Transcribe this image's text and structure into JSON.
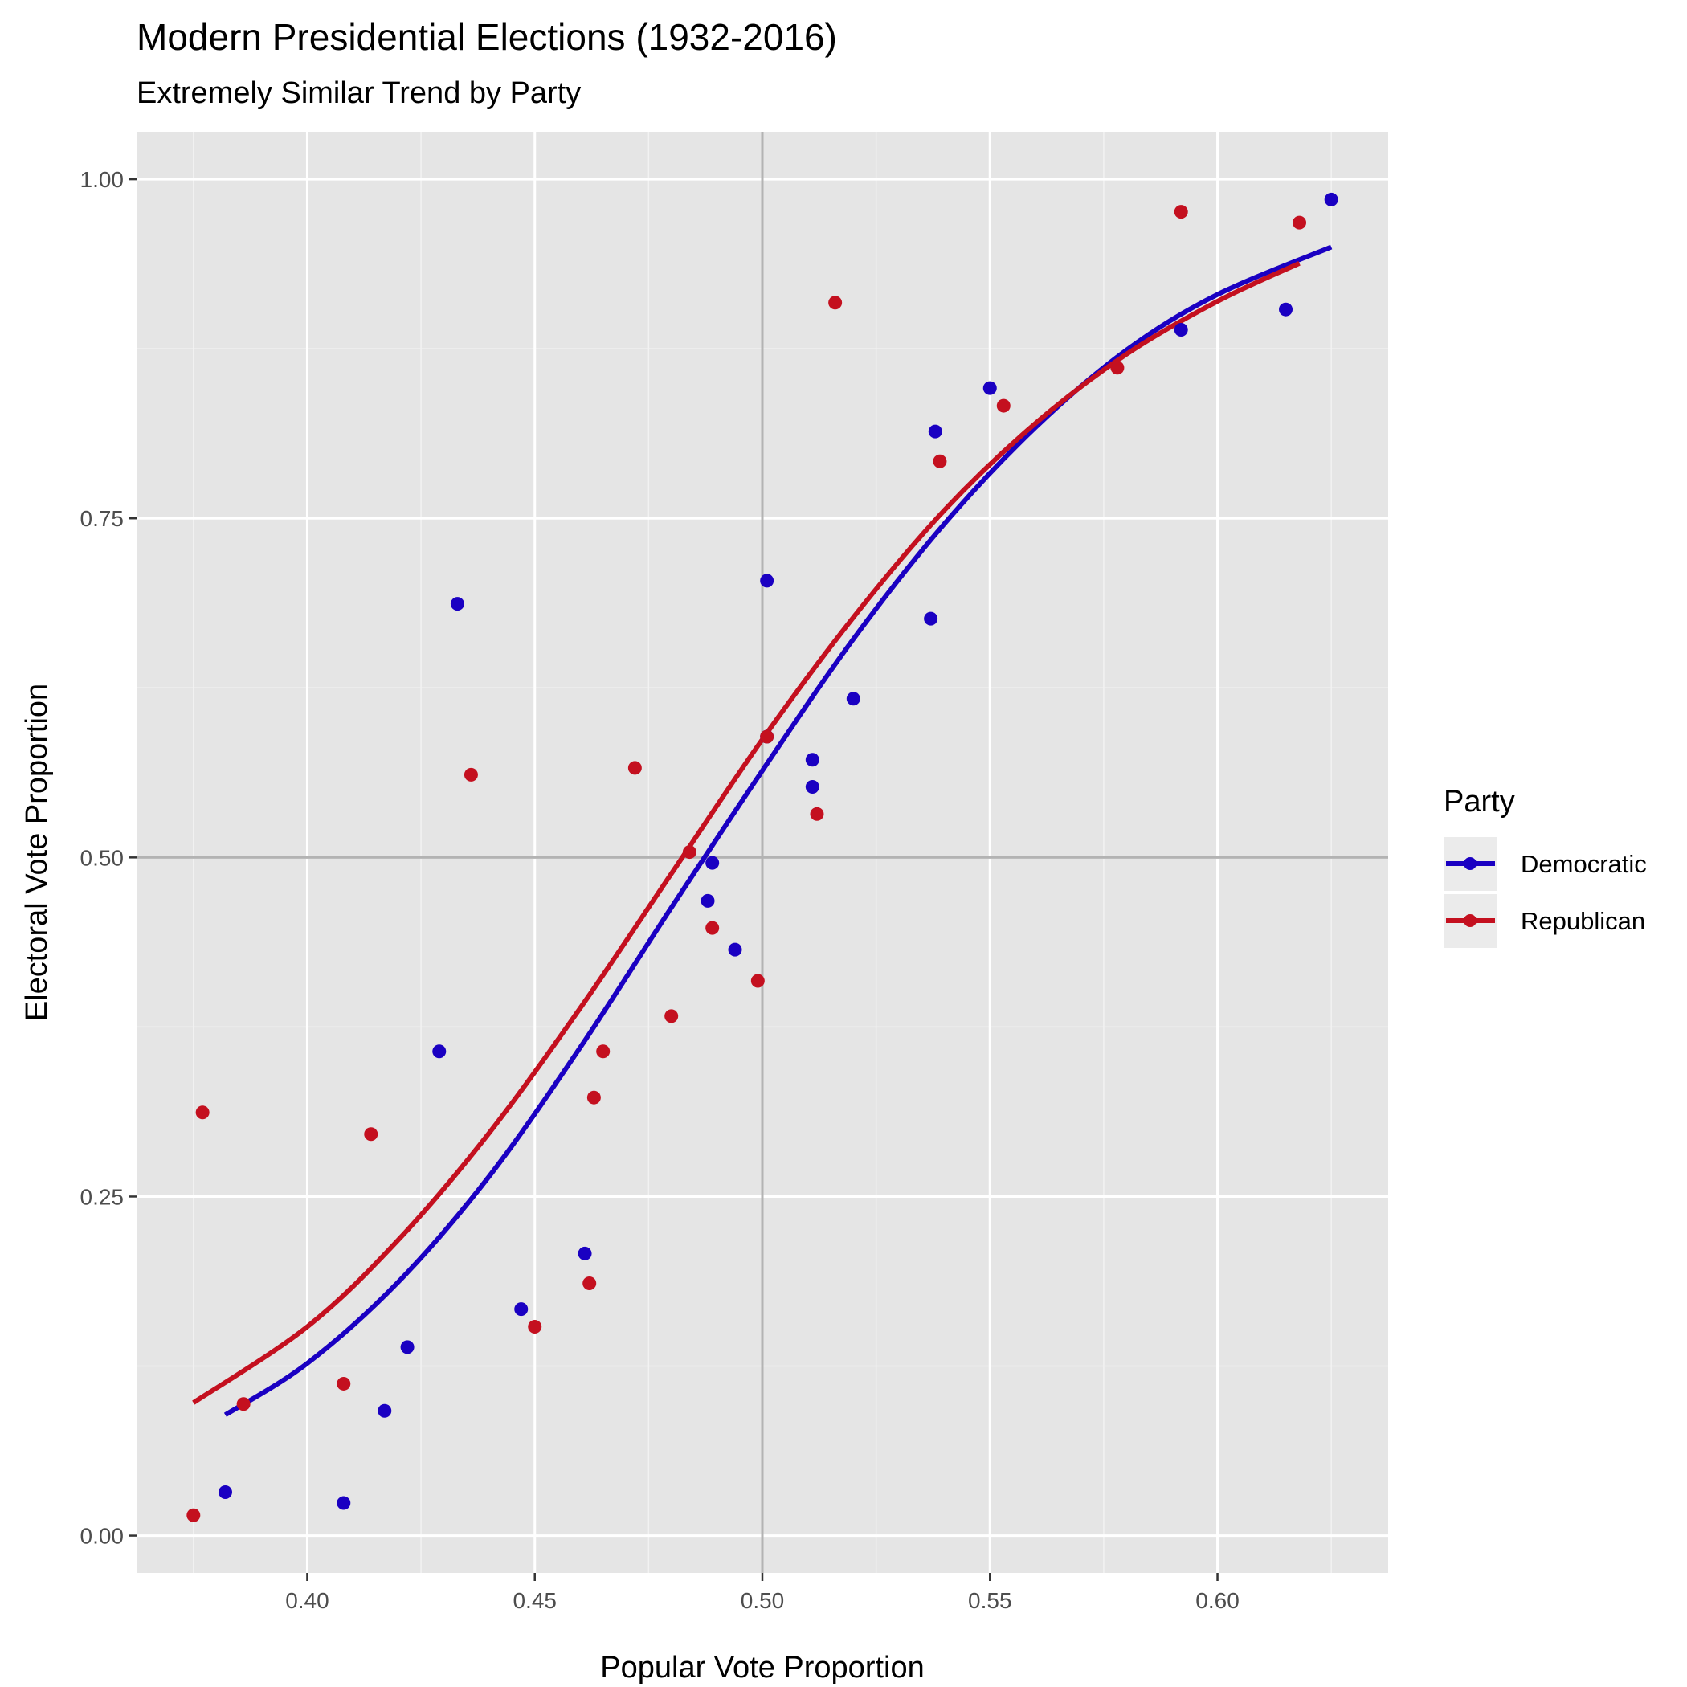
{
  "chart_data": {
    "type": "scatter",
    "title": "Modern Presidential Elections (1932-2016)",
    "subtitle": "Extremely Similar Trend by Party",
    "xlabel": "Popular Vote Proportion",
    "ylabel": "Electoral Vote Proportion",
    "xlim": [
      0.3625,
      0.6375
    ],
    "ylim": [
      -0.0275,
      1.035
    ],
    "x_ticks": [
      0.4,
      0.45,
      0.5,
      0.55,
      0.6
    ],
    "x_tick_labels": [
      "0.40",
      "0.45",
      "0.50",
      "0.55",
      "0.60"
    ],
    "y_ticks": [
      0.0,
      0.25,
      0.5,
      0.75,
      1.0
    ],
    "y_tick_labels": [
      "0.00",
      "0.25",
      "0.50",
      "0.75",
      "1.00"
    ],
    "reference_lines": {
      "x": 0.5,
      "y": 0.5,
      "color": "#b3b3b3"
    },
    "grid": true,
    "legend": {
      "title": "Party",
      "placement": "right"
    },
    "series": [
      {
        "name": "Democratic",
        "color": "#1a00c2",
        "points": [
          {
            "x": 0.382,
            "y": 0.032
          },
          {
            "x": 0.408,
            "y": 0.024
          },
          {
            "x": 0.417,
            "y": 0.092
          },
          {
            "x": 0.422,
            "y": 0.139
          },
          {
            "x": 0.429,
            "y": 0.357
          },
          {
            "x": 0.433,
            "y": 0.687
          },
          {
            "x": 0.447,
            "y": 0.167
          },
          {
            "x": 0.461,
            "y": 0.208
          },
          {
            "x": 0.488,
            "y": 0.468
          },
          {
            "x": 0.489,
            "y": 0.496
          },
          {
            "x": 0.494,
            "y": 0.432
          },
          {
            "x": 0.501,
            "y": 0.704
          },
          {
            "x": 0.501,
            "y": 0.589
          },
          {
            "x": 0.511,
            "y": 0.572
          },
          {
            "x": 0.511,
            "y": 0.552
          },
          {
            "x": 0.52,
            "y": 0.617
          },
          {
            "x": 0.537,
            "y": 0.676
          },
          {
            "x": 0.538,
            "y": 0.814
          },
          {
            "x": 0.55,
            "y": 0.846
          },
          {
            "x": 0.592,
            "y": 0.889
          },
          {
            "x": 0.615,
            "y": 0.904
          },
          {
            "x": 0.625,
            "y": 0.985
          }
        ],
        "fit": [
          {
            "x": 0.382,
            "y": 0.089
          },
          {
            "x": 0.4,
            "y": 0.127
          },
          {
            "x": 0.42,
            "y": 0.187
          },
          {
            "x": 0.44,
            "y": 0.265
          },
          {
            "x": 0.46,
            "y": 0.36
          },
          {
            "x": 0.48,
            "y": 0.463
          },
          {
            "x": 0.5,
            "y": 0.564
          },
          {
            "x": 0.52,
            "y": 0.661
          },
          {
            "x": 0.54,
            "y": 0.746
          },
          {
            "x": 0.56,
            "y": 0.817
          },
          {
            "x": 0.58,
            "y": 0.874
          },
          {
            "x": 0.6,
            "y": 0.915
          },
          {
            "x": 0.625,
            "y": 0.95
          }
        ]
      },
      {
        "name": "Republican",
        "color": "#c4101f",
        "points": [
          {
            "x": 0.375,
            "y": 0.015
          },
          {
            "x": 0.377,
            "y": 0.312
          },
          {
            "x": 0.386,
            "y": 0.097
          },
          {
            "x": 0.408,
            "y": 0.112
          },
          {
            "x": 0.414,
            "y": 0.296
          },
          {
            "x": 0.436,
            "y": 0.561
          },
          {
            "x": 0.45,
            "y": 0.154
          },
          {
            "x": 0.462,
            "y": 0.186
          },
          {
            "x": 0.463,
            "y": 0.323
          },
          {
            "x": 0.465,
            "y": 0.357
          },
          {
            "x": 0.472,
            "y": 0.566
          },
          {
            "x": 0.48,
            "y": 0.383
          },
          {
            "x": 0.484,
            "y": 0.504
          },
          {
            "x": 0.489,
            "y": 0.448
          },
          {
            "x": 0.499,
            "y": 0.409
          },
          {
            "x": 0.501,
            "y": 0.589
          },
          {
            "x": 0.512,
            "y": 0.532
          },
          {
            "x": 0.516,
            "y": 0.909
          },
          {
            "x": 0.539,
            "y": 0.792
          },
          {
            "x": 0.553,
            "y": 0.833
          },
          {
            "x": 0.578,
            "y": 0.861
          },
          {
            "x": 0.592,
            "y": 0.976
          },
          {
            "x": 0.618,
            "y": 0.968
          }
        ],
        "fit": [
          {
            "x": 0.375,
            "y": 0.098
          },
          {
            "x": 0.4,
            "y": 0.154
          },
          {
            "x": 0.42,
            "y": 0.218
          },
          {
            "x": 0.44,
            "y": 0.297
          },
          {
            "x": 0.46,
            "y": 0.389
          },
          {
            "x": 0.48,
            "y": 0.488
          },
          {
            "x": 0.5,
            "y": 0.587
          },
          {
            "x": 0.52,
            "y": 0.677
          },
          {
            "x": 0.54,
            "y": 0.756
          },
          {
            "x": 0.56,
            "y": 0.82
          },
          {
            "x": 0.58,
            "y": 0.871
          },
          {
            "x": 0.6,
            "y": 0.91
          },
          {
            "x": 0.618,
            "y": 0.938
          }
        ]
      }
    ]
  }
}
